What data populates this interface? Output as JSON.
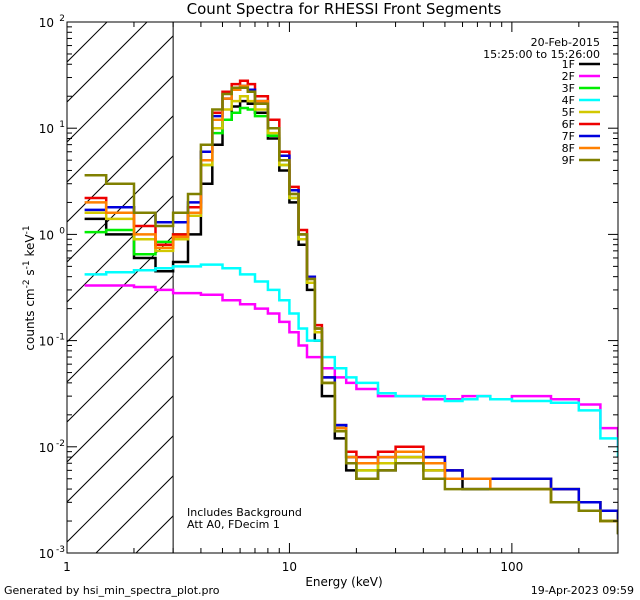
{
  "chart_data": {
    "type": "line",
    "title": "Count Spectra for RHESSI Front Segments",
    "xlabel": "Energy (keV)",
    "ylabel_parts": [
      "counts cm",
      "-2",
      " s",
      "-1",
      " keV",
      "-1"
    ],
    "xscale": "log",
    "yscale": "log",
    "xlim": [
      1,
      300
    ],
    "ylim": [
      0.001,
      100
    ],
    "x_ticks": [
      {
        "value": 1,
        "label": "1"
      },
      {
        "value": 10,
        "label": "10"
      },
      {
        "value": 100,
        "label": "100"
      }
    ],
    "y_ticks": [
      {
        "value": 0.001,
        "base": "10",
        "exp": "-3"
      },
      {
        "value": 0.01,
        "base": "10",
        "exp": "-2"
      },
      {
        "value": 0.1,
        "base": "10",
        "exp": "-1"
      },
      {
        "value": 1,
        "base": "10",
        "exp": "0"
      },
      {
        "value": 10,
        "base": "10",
        "exp": "1"
      },
      {
        "value": 100,
        "base": "10",
        "exp": "2"
      }
    ],
    "cutoff_energy": 3,
    "hatched_region": [
      1,
      3
    ],
    "date": "20-Feb-2015",
    "time_range": "15:25:00 to 15:26:00",
    "legend_position": "top-right",
    "annotations": [
      "Includes Background",
      "Att A0, FDecim 1"
    ],
    "series": [
      {
        "name": "1F",
        "color": "#000000",
        "x": [
          1.2,
          1.5,
          2,
          2.5,
          3,
          3.5,
          4,
          4.5,
          5,
          5.5,
          6,
          6.5,
          7,
          8,
          9,
          10,
          11,
          12,
          13,
          14,
          16,
          18,
          20,
          25,
          30,
          40,
          50,
          60,
          80,
          100,
          150,
          200,
          250,
          300
        ],
        "values": [
          1.4,
          1.0,
          0.6,
          0.45,
          0.55,
          1.0,
          3.0,
          7.0,
          12,
          16,
          18,
          17,
          14,
          8,
          4,
          2.0,
          0.8,
          0.3,
          0.1,
          0.03,
          0.012,
          0.006,
          0.005,
          0.006,
          0.008,
          0.006,
          0.005,
          0.004,
          0.004,
          0.004,
          0.003,
          0.0025,
          0.002,
          0.0015
        ]
      },
      {
        "name": "2F",
        "color": "#ff00ff",
        "x": [
          1.2,
          1.5,
          2,
          2.5,
          3,
          3.5,
          4,
          5,
          6,
          7,
          8,
          9,
          10,
          11,
          12,
          14,
          16,
          18,
          20,
          25,
          30,
          40,
          50,
          60,
          70,
          80,
          100,
          120,
          150,
          200,
          250,
          300
        ],
        "values": [
          0.33,
          0.33,
          0.32,
          0.3,
          0.28,
          0.28,
          0.27,
          0.24,
          0.22,
          0.2,
          0.18,
          0.15,
          0.12,
          0.09,
          0.07,
          0.055,
          0.045,
          0.04,
          0.035,
          0.03,
          0.03,
          0.028,
          0.028,
          0.03,
          0.03,
          0.028,
          0.03,
          0.03,
          0.028,
          0.025,
          0.015,
          0.01
        ]
      },
      {
        "name": "3F",
        "color": "#00ee00",
        "x": [
          1.2,
          1.5,
          2,
          2.5,
          3,
          3.5,
          4,
          4.5,
          5,
          5.5,
          6,
          6.5,
          7,
          8,
          9,
          10,
          11,
          12,
          13,
          14,
          16,
          18,
          20,
          25,
          30,
          40,
          50,
          60,
          80,
          100,
          150,
          200,
          250,
          300
        ],
        "values": [
          1.05,
          1.1,
          0.65,
          0.85,
          1.0,
          1.6,
          4.5,
          9,
          12,
          14,
          15.5,
          15,
          13,
          8.5,
          4.5,
          2.2,
          0.9,
          0.35,
          0.12,
          0.04,
          0.015,
          0.008,
          0.006,
          0.007,
          0.009,
          0.007,
          0.006,
          0.005,
          0.005,
          0.005,
          0.004,
          0.003,
          0.0025,
          0.002
        ]
      },
      {
        "name": "4F",
        "color": "#00ffff",
        "x": [
          1.2,
          1.5,
          2,
          2.5,
          3,
          3.5,
          4,
          5,
          6,
          7,
          8,
          9,
          10,
          11,
          12,
          14,
          16,
          18,
          20,
          25,
          30,
          40,
          50,
          60,
          70,
          80,
          100,
          120,
          150,
          200,
          250,
          300
        ],
        "values": [
          0.42,
          0.44,
          0.46,
          0.48,
          0.5,
          0.5,
          0.52,
          0.48,
          0.42,
          0.36,
          0.3,
          0.24,
          0.18,
          0.13,
          0.1,
          0.07,
          0.055,
          0.045,
          0.04,
          0.032,
          0.03,
          0.03,
          0.027,
          0.028,
          0.03,
          0.028,
          0.027,
          0.027,
          0.026,
          0.022,
          0.012,
          0.008
        ]
      },
      {
        "name": "5F",
        "color": "#d2c800",
        "x": [
          1.2,
          1.5,
          2,
          2.5,
          3,
          3.5,
          4,
          4.5,
          5,
          5.5,
          6,
          6.5,
          7,
          8,
          9,
          10,
          11,
          12,
          13,
          14,
          16,
          18,
          20,
          25,
          30,
          40,
          50,
          60,
          80,
          100,
          150,
          200,
          250,
          300
        ],
        "values": [
          1.6,
          1.4,
          0.9,
          0.7,
          0.9,
          1.5,
          4.5,
          10,
          15,
          18,
          20,
          18,
          15,
          9,
          4.5,
          2.2,
          0.9,
          0.35,
          0.12,
          0.04,
          0.015,
          0.008,
          0.006,
          0.007,
          0.008,
          0.006,
          0.005,
          0.005,
          0.004,
          0.004,
          0.003,
          0.0025,
          0.002,
          0.0018
        ]
      },
      {
        "name": "6F",
        "color": "#ee0000",
        "x": [
          1.2,
          1.5,
          2,
          2.5,
          3,
          3.5,
          4,
          4.5,
          5,
          5.5,
          6,
          6.5,
          7,
          8,
          9,
          10,
          11,
          12,
          13,
          14,
          16,
          18,
          20,
          25,
          30,
          40,
          50,
          60,
          80,
          100,
          150,
          200,
          250,
          300
        ],
        "values": [
          2.2,
          1.8,
          1.2,
          0.8,
          1.0,
          1.8,
          6.0,
          14,
          22,
          26,
          28,
          26,
          20,
          12,
          6,
          2.8,
          1.1,
          0.4,
          0.14,
          0.045,
          0.016,
          0.009,
          0.008,
          0.009,
          0.01,
          0.008,
          0.006,
          0.005,
          0.005,
          0.005,
          0.004,
          0.003,
          0.0025,
          0.002
        ]
      },
      {
        "name": "7F",
        "color": "#0000dd",
        "x": [
          1.2,
          1.5,
          2,
          2.5,
          3,
          3.5,
          4,
          4.5,
          5,
          5.5,
          6,
          6.5,
          7,
          8,
          9,
          10,
          11,
          12,
          13,
          14,
          16,
          18,
          20,
          25,
          30,
          40,
          50,
          60,
          80,
          100,
          150,
          200,
          250,
          300
        ],
        "values": [
          1.7,
          1.8,
          1.6,
          1.3,
          1.3,
          2.0,
          6.0,
          13,
          19,
          23,
          25,
          23,
          18,
          10,
          5.5,
          2.6,
          1.0,
          0.4,
          0.13,
          0.045,
          0.016,
          0.008,
          0.007,
          0.008,
          0.009,
          0.008,
          0.006,
          0.005,
          0.005,
          0.005,
          0.004,
          0.003,
          0.0025,
          0.002
        ]
      },
      {
        "name": "8F",
        "color": "#ff8000",
        "x": [
          1.2,
          1.5,
          2,
          2.5,
          3,
          3.5,
          4,
          4.5,
          5,
          5.5,
          6,
          6.5,
          7,
          8,
          9,
          10,
          11,
          12,
          13,
          14,
          16,
          18,
          20,
          25,
          30,
          40,
          50,
          60,
          80,
          100,
          150,
          200,
          250,
          300
        ],
        "values": [
          2.0,
          1.6,
          1.0,
          0.75,
          0.95,
          1.6,
          5.0,
          12,
          19,
          23,
          25,
          22,
          18,
          10,
          5,
          2.4,
          1.0,
          0.38,
          0.13,
          0.04,
          0.015,
          0.008,
          0.007,
          0.008,
          0.009,
          0.007,
          0.005,
          0.005,
          0.004,
          0.004,
          0.003,
          0.0025,
          0.002,
          0.0018
        ]
      },
      {
        "name": "9F",
        "color": "#808000",
        "x": [
          1.2,
          1.5,
          2,
          2.5,
          3,
          3.5,
          4,
          4.5,
          5,
          5.5,
          6,
          6.5,
          7,
          8,
          9,
          10,
          11,
          12,
          13,
          14,
          16,
          18,
          20,
          25,
          30,
          40,
          50,
          60,
          80,
          100,
          150,
          200,
          250,
          300
        ],
        "values": [
          3.6,
          3.0,
          1.6,
          1.2,
          1.6,
          2.4,
          7.0,
          15,
          21,
          24,
          24,
          22,
          17,
          10,
          5,
          2.4,
          1.0,
          0.38,
          0.13,
          0.04,
          0.014,
          0.007,
          0.005,
          0.006,
          0.007,
          0.005,
          0.004,
          0.004,
          0.004,
          0.004,
          0.003,
          0.0025,
          0.002,
          0.0015
        ]
      }
    ]
  },
  "footer": {
    "generated_by": "Generated by hsi_min_spectra_plot.pro",
    "timestamp": "19-Apr-2023 09:59"
  }
}
